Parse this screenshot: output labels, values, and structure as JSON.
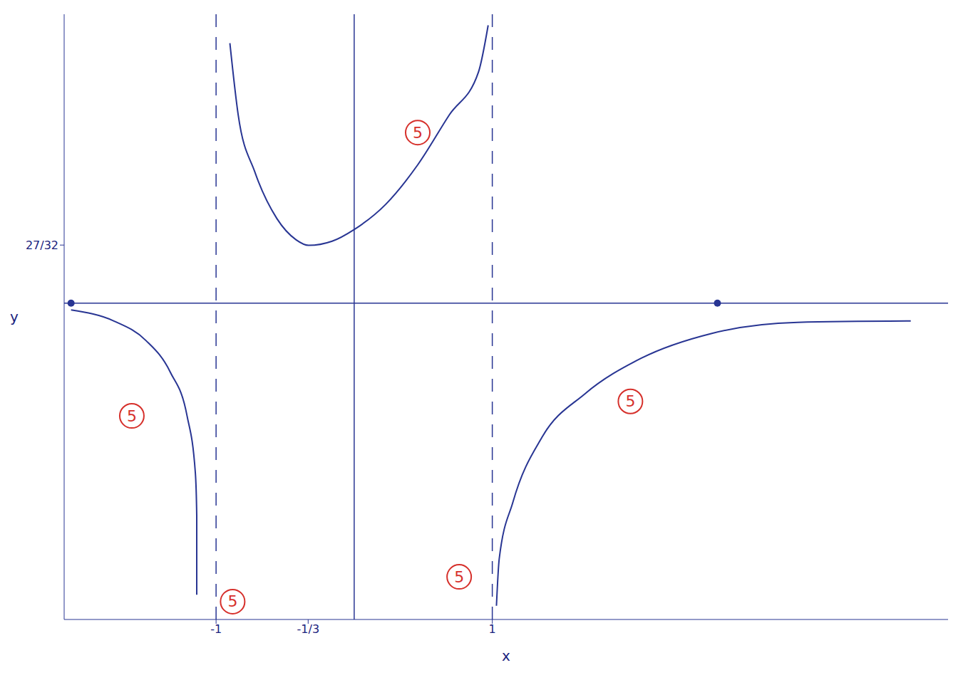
{
  "chart_data": {
    "type": "line",
    "x_label": "x",
    "y_label": "y",
    "xlim": [
      -2.1,
      4.3
    ],
    "ylim": [
      -4.6,
      4.2
    ],
    "xticks": [
      -1,
      {
        "value": -0.3333,
        "label": "-1/3"
      },
      1
    ],
    "yticks": [
      {
        "value": 0.84375,
        "label": "27/32"
      }
    ],
    "grid": false,
    "tick_labels": true,
    "asymptotes_x": [
      -1,
      1
    ],
    "series": [
      {
        "color": "#283593",
        "x": [
          -2.05,
          -1.74,
          -1.51,
          -1.33,
          -1.21,
          -1.15,
          -1.14,
          -1.14
        ],
        "values": [
          -0.1,
          -0.26,
          -0.54,
          -1.01,
          -1.64,
          -2.47,
          -3.09,
          -4.24
        ]
      },
      {
        "color": "#283593",
        "x": [
          -0.9,
          -0.84,
          -0.72,
          -0.56,
          -0.42,
          -0.33,
          -0.16,
          0,
          0.23,
          0.46,
          0.69,
          0.9,
          0.97
        ],
        "values": [
          3.78,
          2.74,
          1.91,
          1.23,
          0.92,
          0.84,
          0.9,
          1.07,
          1.44,
          2.01,
          2.74,
          3.36,
          4.04
        ]
      },
      {
        "color": "#283593",
        "x": [
          1.03,
          1.05,
          1.15,
          1.36,
          1.67,
          2.08,
          2.59,
          3.21,
          4.03
        ],
        "values": [
          -4.4,
          -3.72,
          -2.89,
          -1.95,
          -1.32,
          -0.8,
          -0.44,
          -0.28,
          -0.26
        ]
      }
    ],
    "marked_points": {
      "color": "#283593",
      "x": [
        -2.05,
        2.63
      ],
      "values": [
        0,
        0
      ]
    },
    "annotations": {
      "color": "#d6302b",
      "texts": [
        "5",
        "5",
        "5",
        "5",
        "5"
      ],
      "x": [
        0.46,
        -1.61,
        -0.88,
        0.76,
        2.0
      ],
      "values": [
        2.48,
        -1.64,
        -4.34,
        -3.98,
        -1.43
      ]
    }
  }
}
